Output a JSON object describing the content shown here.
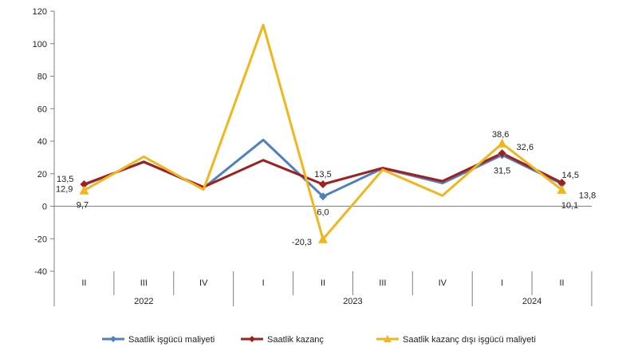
{
  "chart_data": {
    "type": "line",
    "ylim": [
      -40,
      120
    ],
    "yticks": [
      "-40",
      "-20",
      "0",
      "20",
      "40",
      "60",
      "80",
      "100",
      "120"
    ],
    "quarters": [
      "II",
      "III",
      "IV",
      "I",
      "II",
      "III",
      "IV",
      "I",
      "II"
    ],
    "years": [
      {
        "label": "2022",
        "quarters": 3
      },
      {
        "label": "2023",
        "quarters": 4
      },
      {
        "label": "2024",
        "quarters": 2
      }
    ],
    "grid": false,
    "legend_position": "bottom",
    "series": [
      {
        "name": "Saatlik işgücü maliyeti",
        "color": "#4f81bd",
        "marker": "diamond",
        "values": [
          13.1,
          27.5,
          11.2,
          40.8,
          6.0,
          23.3,
          14.2,
          31.5,
          13.8
        ],
        "labels": [
          "",
          "",
          "",
          "",
          "6,0",
          "",
          "",
          "31,5",
          "13,8"
        ]
      },
      {
        "name": "Saatlik kazanç",
        "color": "#a0201f",
        "marker": "diamond",
        "values": [
          13.5,
          27.2,
          11.8,
          28.3,
          13.5,
          23.5,
          15.4,
          32.6,
          14.5
        ],
        "labels": [
          "13,5",
          "",
          "",
          "",
          "13,5",
          "",
          "",
          "32,6",
          "14,5"
        ]
      },
      {
        "name": "Saatlik kazanç dışı işgücü maliyeti",
        "color": "#f2b61d",
        "marker": "triangle",
        "values": [
          9.7,
          30.5,
          10.2,
          111.5,
          -20.3,
          22.5,
          6.5,
          38.6,
          10.1
        ],
        "labels": [
          "9,7",
          "",
          "",
          "",
          "-20,3",
          "",
          "",
          "38,6",
          "10,1"
        ]
      }
    ],
    "extra_labels": [
      "12,9"
    ]
  }
}
